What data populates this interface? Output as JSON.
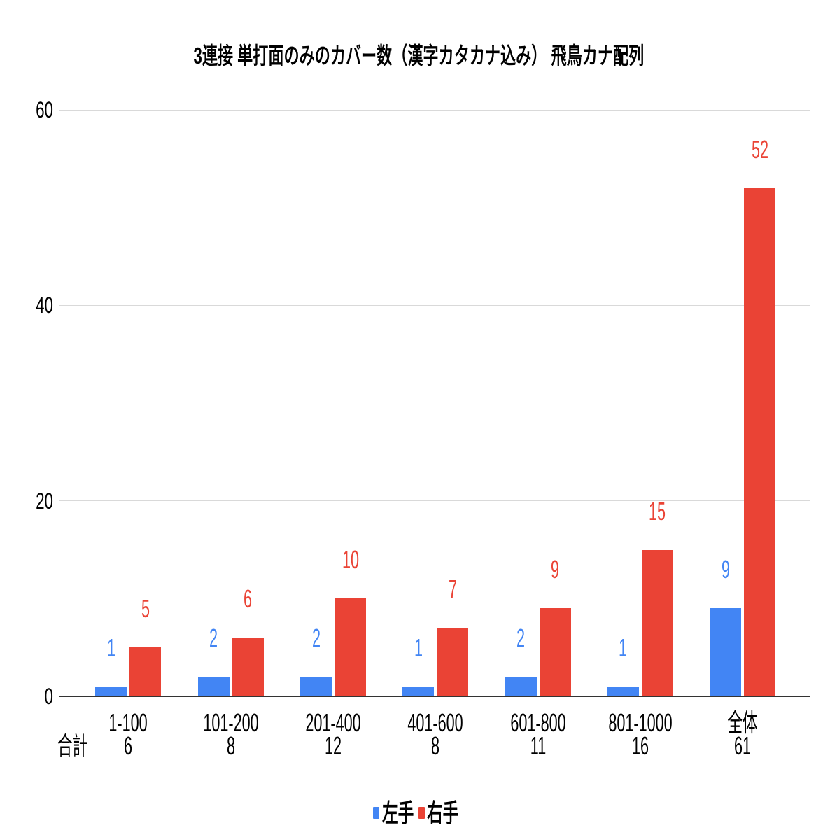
{
  "title": "3連接 単打面のみのカバー数（漢字カタカナ込み） 飛鳥カナ配列",
  "chart_data": {
    "type": "bar",
    "title": "3連接 単打面のみのカバー数（漢字カタカナ込み） 飛鳥カナ配列",
    "categories": [
      "1-100",
      "101-200",
      "201-400",
      "401-600",
      "601-800",
      "801-1000",
      "全体"
    ],
    "series": [
      {
        "name": "左手",
        "color": "#4285F4",
        "values": [
          1,
          2,
          2,
          1,
          2,
          1,
          9
        ]
      },
      {
        "name": "右手",
        "color": "#EA4335",
        "values": [
          5,
          6,
          10,
          7,
          9,
          15,
          52
        ]
      }
    ],
    "totals_row": {
      "label": "合計",
      "values": [
        6,
        8,
        12,
        8,
        11,
        16,
        61
      ]
    },
    "y_axis": {
      "ticks": [
        0,
        20,
        40,
        60
      ],
      "min": 0,
      "max": 60
    },
    "grid": true,
    "data_labels": true,
    "legend_position": "bottom",
    "colors": {
      "grid": "#d9d9d9",
      "baseline": "#333333",
      "text": "#000000"
    }
  }
}
